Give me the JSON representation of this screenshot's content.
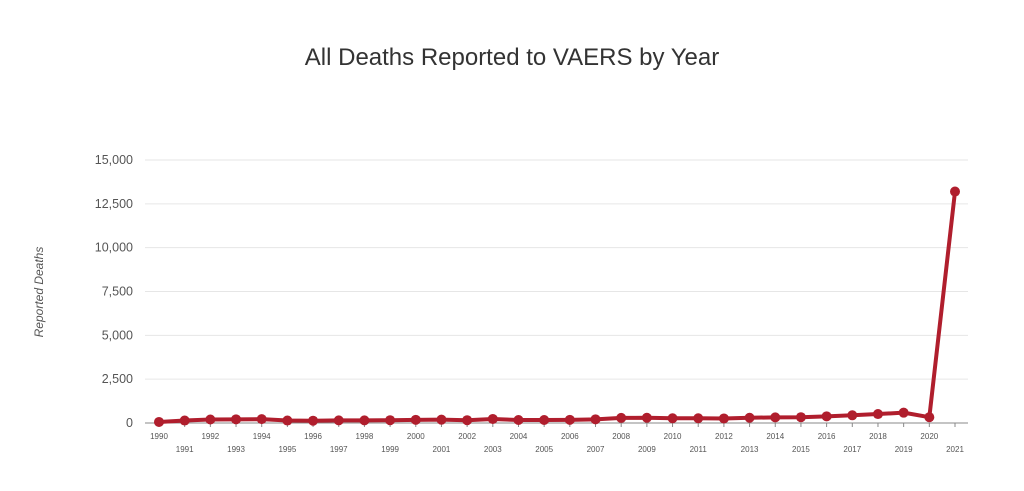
{
  "chart_data": {
    "type": "line",
    "title": "All Deaths Reported to VAERS by Year",
    "xlabel": "",
    "ylabel": "Reported Deaths",
    "ylim": [
      0,
      15000
    ],
    "yticks": [
      "0",
      "2,500",
      "5,000",
      "7,500",
      "10,000",
      "12,500",
      "15,000"
    ],
    "ytick_values": [
      0,
      2500,
      5000,
      7500,
      10000,
      12500,
      15000
    ],
    "grid": true,
    "legend": "none",
    "line_color": "#b01e2d",
    "categories": [
      "1990",
      "1991",
      "1992",
      "1993",
      "1994",
      "1995",
      "1996",
      "1997",
      "1998",
      "1999",
      "2000",
      "2001",
      "2002",
      "2003",
      "2004",
      "2005",
      "2006",
      "2007",
      "2008",
      "2009",
      "2010",
      "2011",
      "2012",
      "2013",
      "2014",
      "2015",
      "2016",
      "2017",
      "2018",
      "2019",
      "2020",
      "2021"
    ],
    "series": [
      {
        "values": [
          60,
          140,
          200,
          210,
          220,
          140,
          130,
          150,
          150,
          160,
          180,
          190,
          160,
          230,
          170,
          170,
          180,
          210,
          290,
          300,
          270,
          270,
          260,
          300,
          320,
          330,
          380,
          440,
          510,
          590,
          330,
          13200
        ]
      }
    ]
  }
}
